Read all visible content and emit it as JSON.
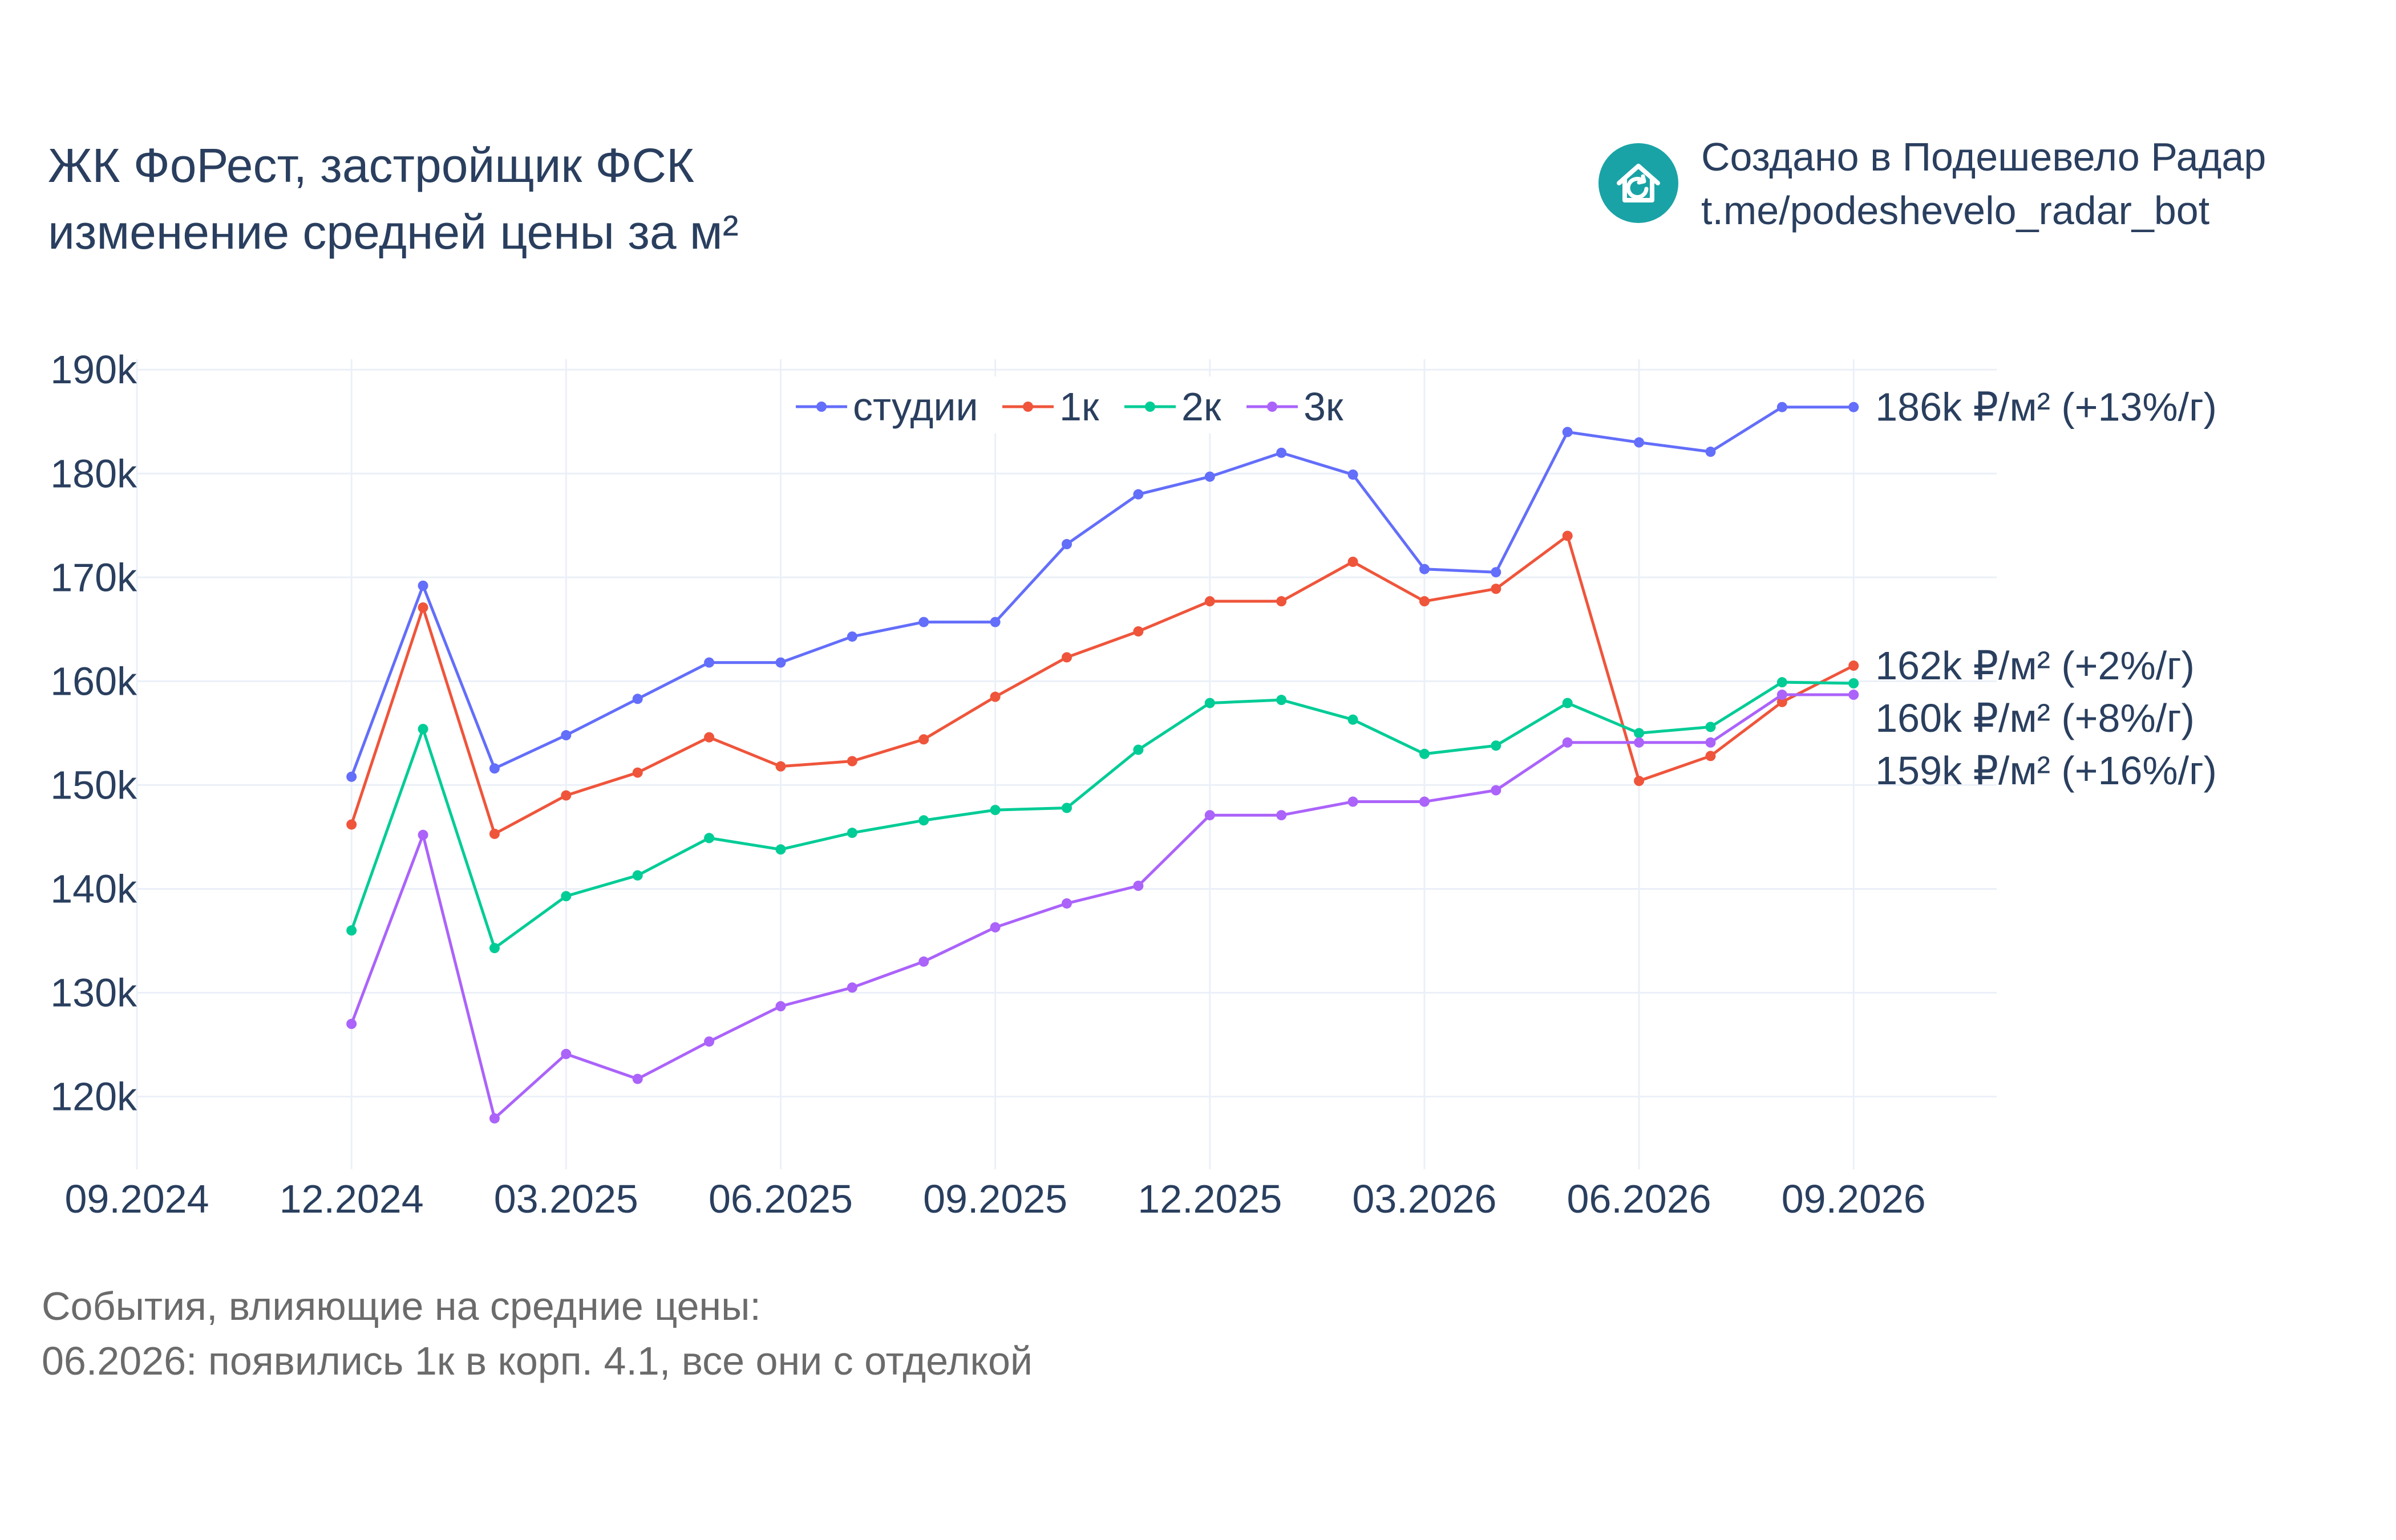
{
  "title_lines": [
    "ЖК ФоРест, застройщик ФСК",
    "изменение средней цены за м²"
  ],
  "credit_lines": [
    "Создано в Подешевело Радар",
    "t.me/podeshevelo_radar_bot"
  ],
  "logo": {
    "icon": "house-refresh-icon",
    "color": "#1aa3a6"
  },
  "events_lines": [
    "События, влияющие на средние цены:",
    "06.2026: появились 1к в корп. 4.1, все они с отделкой"
  ],
  "chart_data": {
    "type": "line",
    "x": [
      "2024-12",
      "2025-01",
      "2025-02",
      "2025-03",
      "2025-04",
      "2025-05",
      "2025-06",
      "2025-07",
      "2025-08",
      "2025-09",
      "2025-10",
      "2025-11",
      "2025-12",
      "2026-01",
      "2026-02",
      "2026-03",
      "2026-04",
      "2026-05",
      "2026-06",
      "2026-07",
      "2026-08",
      "2026-09"
    ],
    "x_ticks": [
      "09.2024",
      "12.2024",
      "03.2025",
      "06.2025",
      "09.2025",
      "12.2025",
      "03.2026",
      "06.2026",
      "09.2026"
    ],
    "y_ticks": [
      "120k",
      "130k",
      "140k",
      "150k",
      "160k",
      "170k",
      "180k",
      "190k"
    ],
    "y_tick_values": [
      120000,
      130000,
      140000,
      150000,
      160000,
      170000,
      180000,
      190000
    ],
    "xlim": [
      "2024-09",
      "2026-11"
    ],
    "ylim": [
      113000,
      191000
    ],
    "grid": true,
    "legend_position": "top-center",
    "series": [
      {
        "name": "студии",
        "color": "#636efa",
        "values": [
          150800,
          169200,
          151600,
          154800,
          158300,
          161800,
          161800,
          164300,
          165700,
          165700,
          173200,
          178000,
          179700,
          182000,
          179900,
          170800,
          170500,
          184000,
          183000,
          182100,
          186400,
          186400
        ],
        "end_label": "186k ₽/м² (+13%/г)"
      },
      {
        "name": "1к",
        "color": "#ef553b",
        "values": [
          146200,
          167100,
          145300,
          149000,
          151200,
          154600,
          151800,
          152300,
          154400,
          158500,
          162300,
          164800,
          167700,
          167700,
          171500,
          167700,
          168900,
          174000,
          150400,
          152800,
          158000,
          161500
        ],
        "end_label": "162k ₽/м² (+2%/г)"
      },
      {
        "name": "2к",
        "color": "#00cc96",
        "values": [
          136000,
          155400,
          134300,
          139300,
          141300,
          144900,
          143800,
          145400,
          146600,
          147600,
          147800,
          153400,
          157900,
          158200,
          156300,
          153000,
          153800,
          157900,
          155000,
          155600,
          159900,
          159800
        ],
        "end_label": "160k ₽/м² (+8%/г)"
      },
      {
        "name": "3к",
        "color": "#ab63fa",
        "values": [
          127000,
          145200,
          117900,
          124100,
          121700,
          125300,
          128700,
          130500,
          133000,
          136300,
          138600,
          140300,
          147100,
          147100,
          148400,
          148400,
          149500,
          154100,
          154100,
          154100,
          158700,
          158700
        ],
        "end_label": "159k ₽/м² (+16%/г)"
      }
    ]
  }
}
